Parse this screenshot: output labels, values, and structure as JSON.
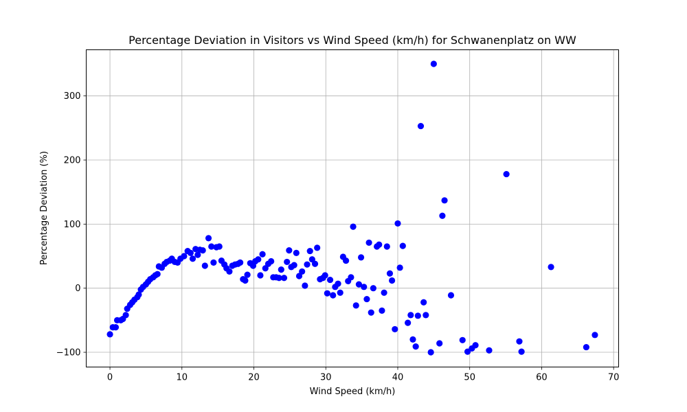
{
  "chart_data": {
    "type": "scatter",
    "title": "Percentage Deviation in Visitors vs Wind Speed (km/h) for Schwanenplatz on WW",
    "xlabel": "Wind Speed (km/h)",
    "ylabel": "Percentage Deviation (%)",
    "xlim": [
      -3.3,
      70.7
    ],
    "ylim": [
      -123,
      372
    ],
    "xticks": [
      0,
      10,
      20,
      30,
      40,
      50,
      60,
      70
    ],
    "yticks": [
      -100,
      0,
      100,
      200,
      300
    ],
    "grid": true,
    "marker_color": "#0000ff",
    "points": [
      [
        0.0,
        -72
      ],
      [
        0.4,
        -61
      ],
      [
        0.8,
        -61
      ],
      [
        1.0,
        -50
      ],
      [
        1.5,
        -50
      ],
      [
        1.8,
        -48
      ],
      [
        2.2,
        -42
      ],
      [
        2.4,
        -32
      ],
      [
        2.8,
        -26
      ],
      [
        3.1,
        -22
      ],
      [
        3.4,
        -18
      ],
      [
        3.8,
        -14
      ],
      [
        4.0,
        -10
      ],
      [
        4.3,
        -2
      ],
      [
        4.6,
        2
      ],
      [
        5.0,
        6
      ],
      [
        5.3,
        10
      ],
      [
        5.6,
        14
      ],
      [
        6.0,
        17
      ],
      [
        6.3,
        20
      ],
      [
        6.6,
        22
      ],
      [
        6.8,
        34
      ],
      [
        7.2,
        32
      ],
      [
        7.6,
        38
      ],
      [
        7.9,
        41
      ],
      [
        8.3,
        43
      ],
      [
        8.6,
        46
      ],
      [
        9.0,
        41
      ],
      [
        9.4,
        40
      ],
      [
        9.8,
        46
      ],
      [
        10.3,
        50
      ],
      [
        10.8,
        58
      ],
      [
        11.2,
        55
      ],
      [
        11.5,
        46
      ],
      [
        11.9,
        61
      ],
      [
        12.2,
        52
      ],
      [
        12.5,
        60
      ],
      [
        12.9,
        59
      ],
      [
        13.2,
        35
      ],
      [
        13.7,
        78
      ],
      [
        14.1,
        65
      ],
      [
        14.4,
        40
      ],
      [
        14.8,
        64
      ],
      [
        15.2,
        65
      ],
      [
        15.5,
        43
      ],
      [
        15.9,
        37
      ],
      [
        16.2,
        31
      ],
      [
        16.6,
        26
      ],
      [
        17.0,
        35
      ],
      [
        17.4,
        37
      ],
      [
        17.8,
        38
      ],
      [
        18.1,
        40
      ],
      [
        18.5,
        14
      ],
      [
        18.8,
        12
      ],
      [
        19.1,
        21
      ],
      [
        19.5,
        39
      ],
      [
        19.9,
        35
      ],
      [
        20.2,
        42
      ],
      [
        20.6,
        45
      ],
      [
        20.9,
        20
      ],
      [
        21.2,
        53
      ],
      [
        21.6,
        31
      ],
      [
        22.0,
        38
      ],
      [
        22.4,
        42
      ],
      [
        22.7,
        17
      ],
      [
        23.1,
        17
      ],
      [
        23.5,
        16
      ],
      [
        23.8,
        29
      ],
      [
        24.2,
        16
      ],
      [
        24.6,
        41
      ],
      [
        24.9,
        59
      ],
      [
        25.2,
        33
      ],
      [
        25.6,
        36
      ],
      [
        25.9,
        55
      ],
      [
        26.3,
        19
      ],
      [
        26.7,
        26
      ],
      [
        27.1,
        4
      ],
      [
        27.4,
        37
      ],
      [
        27.8,
        58
      ],
      [
        28.1,
        45
      ],
      [
        28.5,
        38
      ],
      [
        28.8,
        63
      ],
      [
        29.2,
        14
      ],
      [
        29.6,
        16
      ],
      [
        29.9,
        20
      ],
      [
        30.2,
        -8
      ],
      [
        30.6,
        13
      ],
      [
        31.0,
        -11
      ],
      [
        31.3,
        2
      ],
      [
        31.7,
        7
      ],
      [
        32.0,
        -7
      ],
      [
        32.4,
        49
      ],
      [
        32.8,
        43
      ],
      [
        33.1,
        11
      ],
      [
        33.5,
        17
      ],
      [
        33.8,
        96
      ],
      [
        34.2,
        -27
      ],
      [
        34.6,
        6
      ],
      [
        34.9,
        48
      ],
      [
        35.3,
        2
      ],
      [
        35.7,
        -17
      ],
      [
        36.0,
        71
      ],
      [
        36.3,
        -38
      ],
      [
        36.6,
        0
      ],
      [
        37.1,
        65
      ],
      [
        37.4,
        68
      ],
      [
        37.8,
        -35
      ],
      [
        38.1,
        -7
      ],
      [
        38.5,
        65
      ],
      [
        38.9,
        23
      ],
      [
        39.2,
        12
      ],
      [
        39.6,
        -64
      ],
      [
        40.0,
        101
      ],
      [
        40.3,
        32
      ],
      [
        40.7,
        66
      ],
      [
        41.4,
        -54
      ],
      [
        41.8,
        -42
      ],
      [
        42.1,
        -80
      ],
      [
        42.5,
        -91
      ],
      [
        42.8,
        -43
      ],
      [
        43.2,
        253
      ],
      [
        43.6,
        -22
      ],
      [
        43.9,
        -42
      ],
      [
        44.6,
        -100
      ],
      [
        45.0,
        350
      ],
      [
        45.8,
        -86
      ],
      [
        46.2,
        113
      ],
      [
        46.5,
        137
      ],
      [
        47.4,
        -11
      ],
      [
        49.0,
        -81
      ],
      [
        49.7,
        -99
      ],
      [
        50.3,
        -94
      ],
      [
        50.8,
        -89
      ],
      [
        52.7,
        -97
      ],
      [
        55.1,
        178
      ],
      [
        56.9,
        -83
      ],
      [
        57.2,
        -99
      ],
      [
        61.3,
        33
      ],
      [
        66.2,
        -92
      ],
      [
        67.4,
        -73
      ]
    ]
  }
}
